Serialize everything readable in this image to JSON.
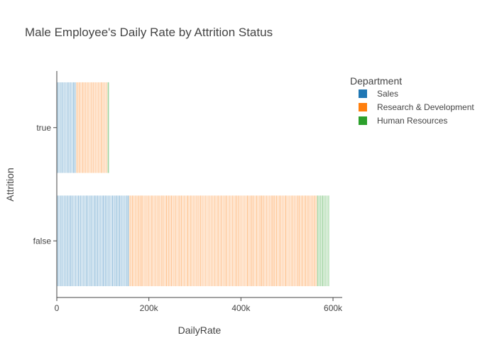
{
  "chart_data": {
    "type": "bar",
    "orientation": "horizontal",
    "barmode": "stack",
    "title": "Male Employee's Daily Rate by Attrition Status",
    "xlabel": "DailyRate",
    "ylabel": "Attrition",
    "xlim": [
      0,
      620000
    ],
    "x_ticks": [
      "0",
      "200k",
      "400k",
      "600k"
    ],
    "x_tick_values": [
      0,
      200000,
      400000,
      600000
    ],
    "categories": [
      "true",
      "false"
    ],
    "legend": {
      "title": "Department",
      "position": "top-right"
    },
    "grid": false,
    "series": [
      {
        "name": "Sales",
        "color": "#1f77b4",
        "values": [
          42000,
          157000
        ]
      },
      {
        "name": "Research & Development",
        "color": "#ff7f0e",
        "values": [
          68000,
          408000
        ]
      },
      {
        "name": "Human Resources",
        "color": "#2ca02c",
        "values": [
          4000,
          27000
        ]
      }
    ]
  }
}
